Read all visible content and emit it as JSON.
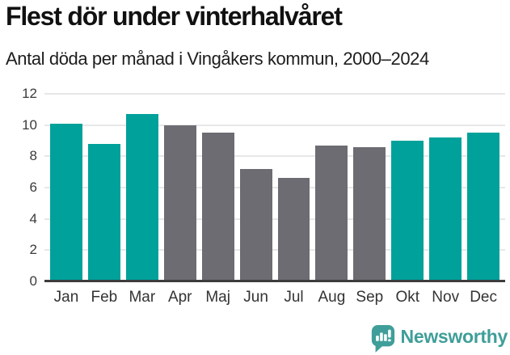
{
  "chart_data": {
    "type": "bar",
    "title": "Flest dör under vinterhalvåret",
    "subtitle": "Antal döda per månad i Vingåkers kommun, 2000–2024",
    "categories": [
      "Jan",
      "Feb",
      "Mar",
      "Apr",
      "Maj",
      "Jun",
      "Jul",
      "Aug",
      "Sep",
      "Okt",
      "Nov",
      "Dec"
    ],
    "values": [
      10.1,
      8.8,
      10.7,
      10.0,
      9.5,
      7.2,
      6.6,
      8.7,
      8.6,
      9.0,
      9.2,
      9.5
    ],
    "highlighted": [
      true,
      true,
      true,
      false,
      false,
      false,
      false,
      false,
      false,
      true,
      true,
      true
    ],
    "bar_color_highlight": "#00a19a",
    "bar_color_default": "#6d6c72",
    "xlabel": "",
    "ylabel": "",
    "ylim": [
      0,
      12
    ],
    "yticks": [
      0,
      2,
      4,
      6,
      8,
      10,
      12
    ],
    "grid": true,
    "legend": false
  },
  "colors": {
    "grid_line": "#e7e7e8",
    "axis_line": "#3d3d3d",
    "axis_text": "#333333",
    "title_text": "#111111",
    "logo_teal": "#3f9e99"
  },
  "footer": {
    "brand": "Newsworthy"
  }
}
